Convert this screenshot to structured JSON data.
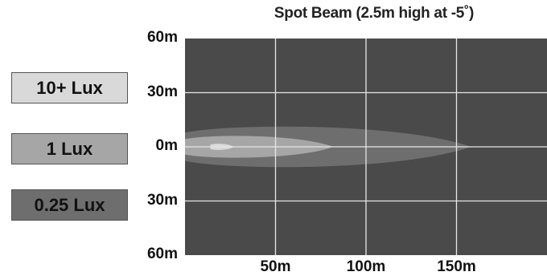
{
  "chart_data": {
    "type": "heatmap",
    "title": "Spot Beam (2.5m high at -5˚)",
    "xlabel": "",
    "ylabel": "",
    "xlim": [
      0,
      200
    ],
    "ylim": [
      -60,
      60
    ],
    "x_ticks": [
      {
        "value": 50,
        "label": "50m"
      },
      {
        "value": 100,
        "label": "100m"
      },
      {
        "value": 150,
        "label": "150m"
      }
    ],
    "y_ticks": [
      {
        "value": 60,
        "label": "60m"
      },
      {
        "value": 30,
        "label": "30m"
      },
      {
        "value": 0,
        "label": "0m"
      },
      {
        "value": -30,
        "label": "30m"
      },
      {
        "value": -60,
        "label": "60m"
      }
    ],
    "grid": true,
    "background_color": "#4a4a4a",
    "gridline_color": "#e6e6e6",
    "legend": [
      {
        "label": "10+ Lux",
        "color": "#d9d9d9"
      },
      {
        "label": "1 Lux",
        "color": "#a6a6a6"
      },
      {
        "label": "0.25 Lux",
        "color": "#6e6e6e"
      }
    ],
    "zones": [
      {
        "level": "0.25 Lux",
        "x_start": 0,
        "x_end": 158,
        "y_half_width": 13,
        "color": "#6e6e6e"
      },
      {
        "level": "1 Lux",
        "x_start": 0,
        "x_end": 82,
        "y_half_width": 7,
        "color": "#a6a6a6"
      },
      {
        "level": "10+ Lux",
        "x_start": 14,
        "x_end": 27,
        "y_half_width": 2,
        "color": "#d9d9d9"
      }
    ]
  }
}
